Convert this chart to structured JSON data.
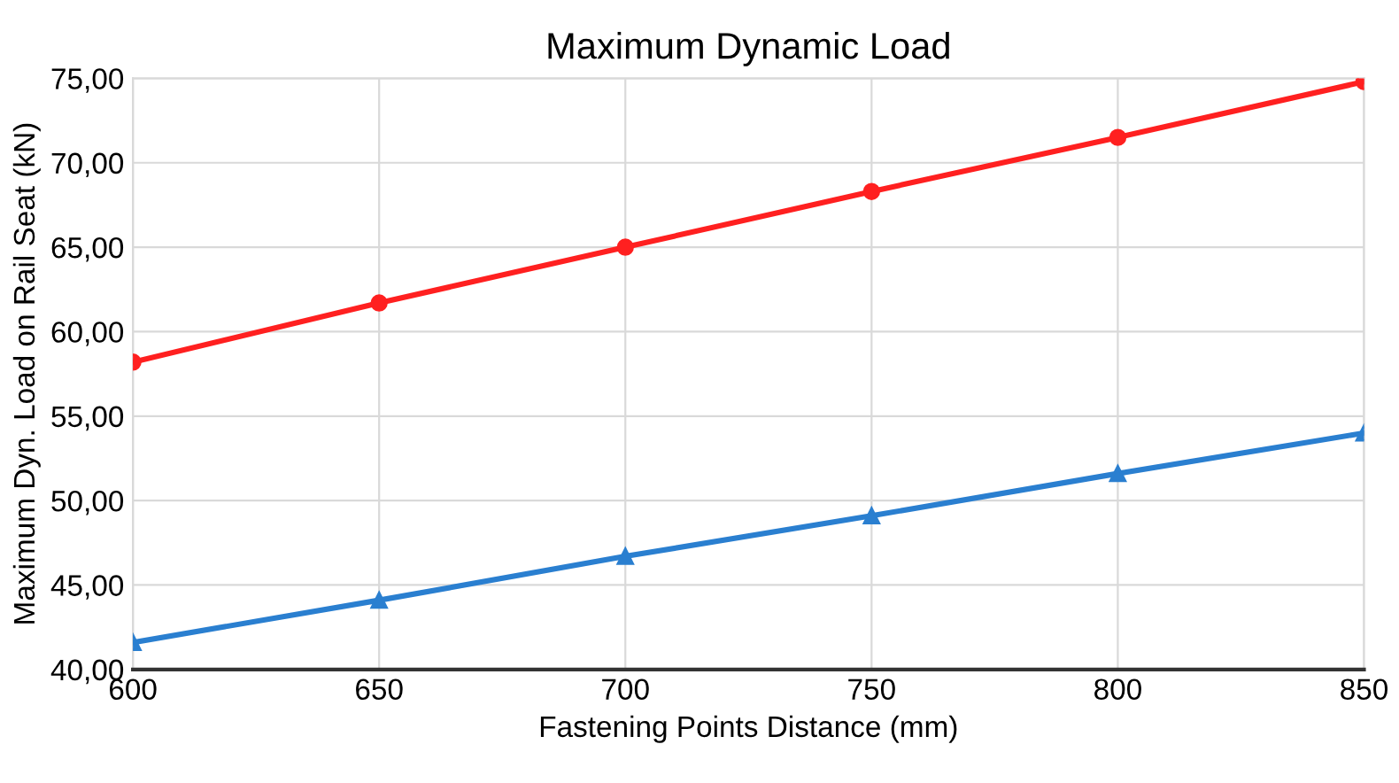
{
  "chart_data": {
    "type": "line",
    "title": "Maximum Dynamic Load",
    "xlabel": "Fastening Points Distance (mm)",
    "ylabel": "Maximum Dyn. Load on Rail Seat (kN)",
    "x": [
      600,
      650,
      700,
      750,
      800,
      850
    ],
    "series": [
      {
        "color": "#ff2020",
        "marker": "circle",
        "values": [
          58.2,
          61.7,
          65.0,
          68.3,
          71.5,
          74.8
        ]
      },
      {
        "color": "#2a7fd0",
        "marker": "triangle",
        "values": [
          41.6,
          44.1,
          46.7,
          49.1,
          51.6,
          54.0
        ]
      }
    ],
    "xlim": [
      600,
      850
    ],
    "xticks": [
      600,
      650,
      700,
      750,
      800,
      850
    ],
    "ylim": [
      40,
      75
    ],
    "yticks": [
      {
        "value": 40,
        "label": "40,00"
      },
      {
        "value": 45,
        "label": "45,00"
      },
      {
        "value": 50,
        "label": "50,00"
      },
      {
        "value": 55,
        "label": "55,00"
      },
      {
        "value": 60,
        "label": "60,00"
      },
      {
        "value": 65,
        "label": "65,00"
      },
      {
        "value": 70,
        "label": "70,00"
      },
      {
        "value": 75,
        "label": "75,00"
      }
    ],
    "grid": true,
    "line_style": "solid"
  }
}
